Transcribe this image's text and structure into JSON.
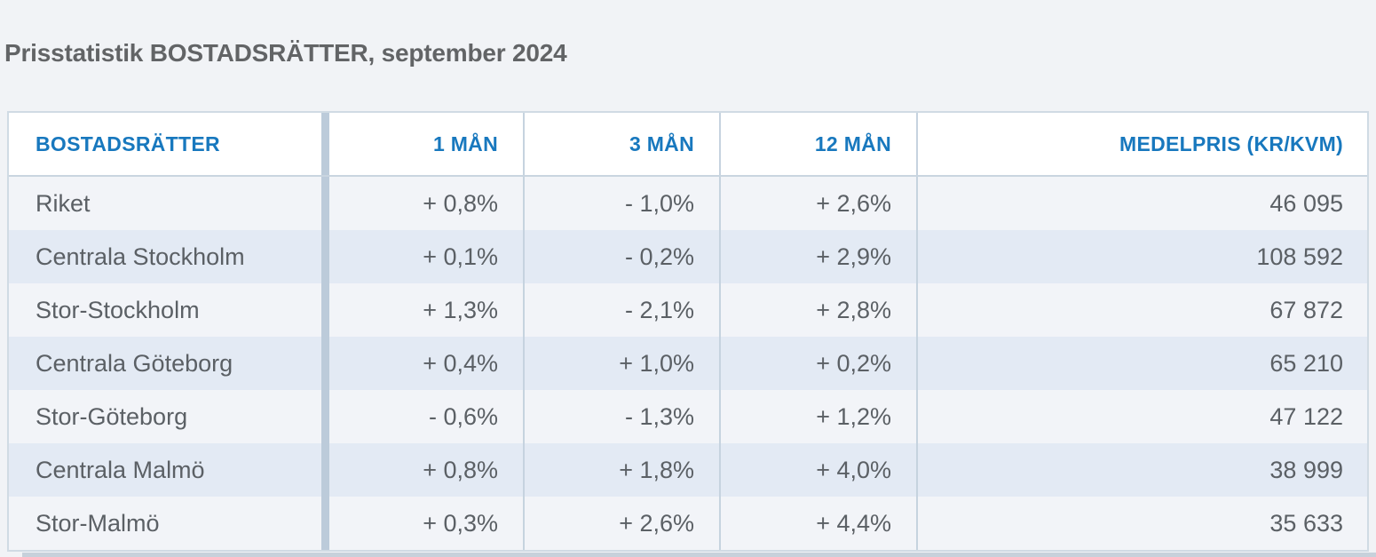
{
  "page": {
    "title": "Prisstatistik BOSTADSRÄTTER, september 2024"
  },
  "table": {
    "columns": [
      {
        "key": "name",
        "label": "BOSTADSRÄTTER"
      },
      {
        "key": "m1",
        "label": "1 MÅN"
      },
      {
        "key": "m3",
        "label": "3 MÅN"
      },
      {
        "key": "m12",
        "label": "12 MÅN"
      },
      {
        "key": "price",
        "label": "MEDELPRIS (KR/KVM)"
      }
    ],
    "rows": [
      {
        "name": "Riket",
        "m1": "+ 0,8%",
        "m3": "- 1,0%",
        "m12": "+ 2,6%",
        "price": "46 095"
      },
      {
        "name": "Centrala Stockholm",
        "m1": "+ 0,1%",
        "m3": "- 0,2%",
        "m12": "+ 2,9%",
        "price": "108 592"
      },
      {
        "name": "Stor-Stockholm",
        "m1": "+ 1,3%",
        "m3": "- 2,1%",
        "m12": "+ 2,8%",
        "price": "67 872"
      },
      {
        "name": "Centrala Göteborg",
        "m1": "+ 0,4%",
        "m3": "+ 1,0%",
        "m12": "+ 0,2%",
        "price": "65 210"
      },
      {
        "name": "Stor-Göteborg",
        "m1": "- 0,6%",
        "m3": "- 1,3%",
        "m12": "+ 1,2%",
        "price": "47 122"
      },
      {
        "name": "Centrala Malmö",
        "m1": "+ 0,8%",
        "m3": "+ 1,8%",
        "m12": "+ 4,0%",
        "price": "38 999"
      },
      {
        "name": "Stor-Malmö",
        "m1": "+ 0,3%",
        "m3": "+ 2,6%",
        "m12": "+ 4,4%",
        "price": "35 633"
      }
    ]
  },
  "chart_data": {
    "type": "table",
    "title": "Prisstatistik BOSTADSRÄTTER, september 2024",
    "columns": [
      "BOSTADSRÄTTER",
      "1 MÅN",
      "3 MÅN",
      "12 MÅN",
      "MEDELPRIS (KR/KVM)"
    ],
    "categories": [
      "Riket",
      "Centrala Stockholm",
      "Stor-Stockholm",
      "Centrala Göteborg",
      "Stor-Göteborg",
      "Centrala Malmö",
      "Stor-Malmö"
    ],
    "series": [
      {
        "name": "1 MÅN (%)",
        "values": [
          0.8,
          0.1,
          1.3,
          0.4,
          -0.6,
          0.8,
          0.3
        ]
      },
      {
        "name": "3 MÅN (%)",
        "values": [
          -1.0,
          -0.2,
          -2.1,
          1.0,
          -1.3,
          1.8,
          2.6
        ]
      },
      {
        "name": "12 MÅN (%)",
        "values": [
          2.6,
          2.9,
          2.8,
          0.2,
          1.2,
          4.0,
          4.4
        ]
      },
      {
        "name": "MEDELPRIS (KR/KVM)",
        "values": [
          46095,
          108592,
          67872,
          65210,
          47122,
          38999,
          35633
        ]
      }
    ],
    "layout": {
      "header_text_color": "#1878be",
      "row_stripe_colors": [
        "#f2f4f8",
        "#e3eaf4"
      ],
      "grid": "column-separators"
    }
  },
  "colors": {
    "page_background": "#f1f3f6",
    "title_text": "#626466",
    "header_text": "#1878be",
    "cell_text": "#5b6065",
    "row_odd": "#f2f4f8",
    "row_even": "#e3eaf4",
    "column_band": "#bccbda",
    "border": "#c9d5e0"
  }
}
